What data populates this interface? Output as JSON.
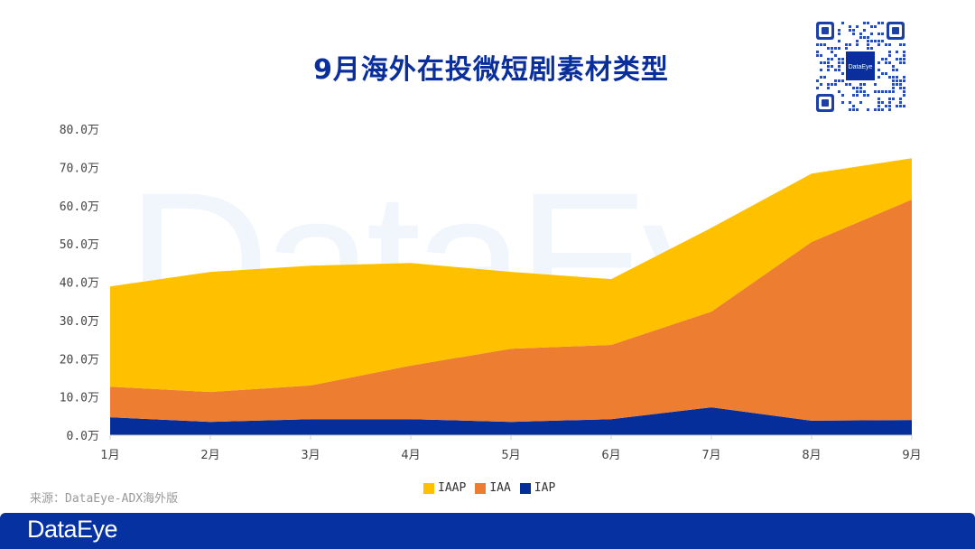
{
  "header": {
    "title": "9月海外在投微短剧素材类型"
  },
  "qr_code": {
    "center_label": "DataEye"
  },
  "watermark": "DataEye",
  "source": "来源：DataEye-ADX海外版",
  "footer": {
    "logo": "DataEye"
  },
  "colors": {
    "IAAP": "#ffc000",
    "IAA": "#ed7d31",
    "IAP": "#052e9b",
    "title": "#0a2f9c",
    "footer_bg": "#0532a0"
  },
  "legend": [
    {
      "label": "IAAP",
      "color": "#ffc000"
    },
    {
      "label": "IAA",
      "color": "#ed7d31"
    },
    {
      "label": "IAP",
      "color": "#052e9b"
    }
  ],
  "chart_data": {
    "type": "area",
    "stacked": true,
    "title": "9月海外在投微短剧素材类型",
    "xlabel": "",
    "ylabel": "",
    "unit": "万",
    "categories": [
      "1月",
      "2月",
      "3月",
      "4月",
      "5月",
      "6月",
      "7月",
      "8月",
      "9月"
    ],
    "series": [
      {
        "name": "IAP",
        "color": "#052e9b",
        "values": [
          4.7,
          3.5,
          4.2,
          4.2,
          3.5,
          4.2,
          7.3,
          3.8,
          4.0
        ]
      },
      {
        "name": "IAA",
        "color": "#ed7d31",
        "values": [
          8.0,
          7.8,
          8.8,
          14.0,
          19.1,
          19.4,
          25.0,
          46.7,
          57.6
        ]
      },
      {
        "name": "IAAP",
        "color": "#ffc000",
        "values": [
          26.2,
          31.4,
          31.3,
          26.8,
          20.1,
          17.2,
          21.9,
          17.9,
          10.8
        ]
      }
    ],
    "ylim": [
      0,
      80
    ],
    "yticks": [
      "0.0万",
      "10.0万",
      "20.0万",
      "30.0万",
      "40.0万",
      "50.0万",
      "60.0万",
      "70.0万",
      "80.0万"
    ],
    "grid": false,
    "legend_position": "bottom"
  }
}
